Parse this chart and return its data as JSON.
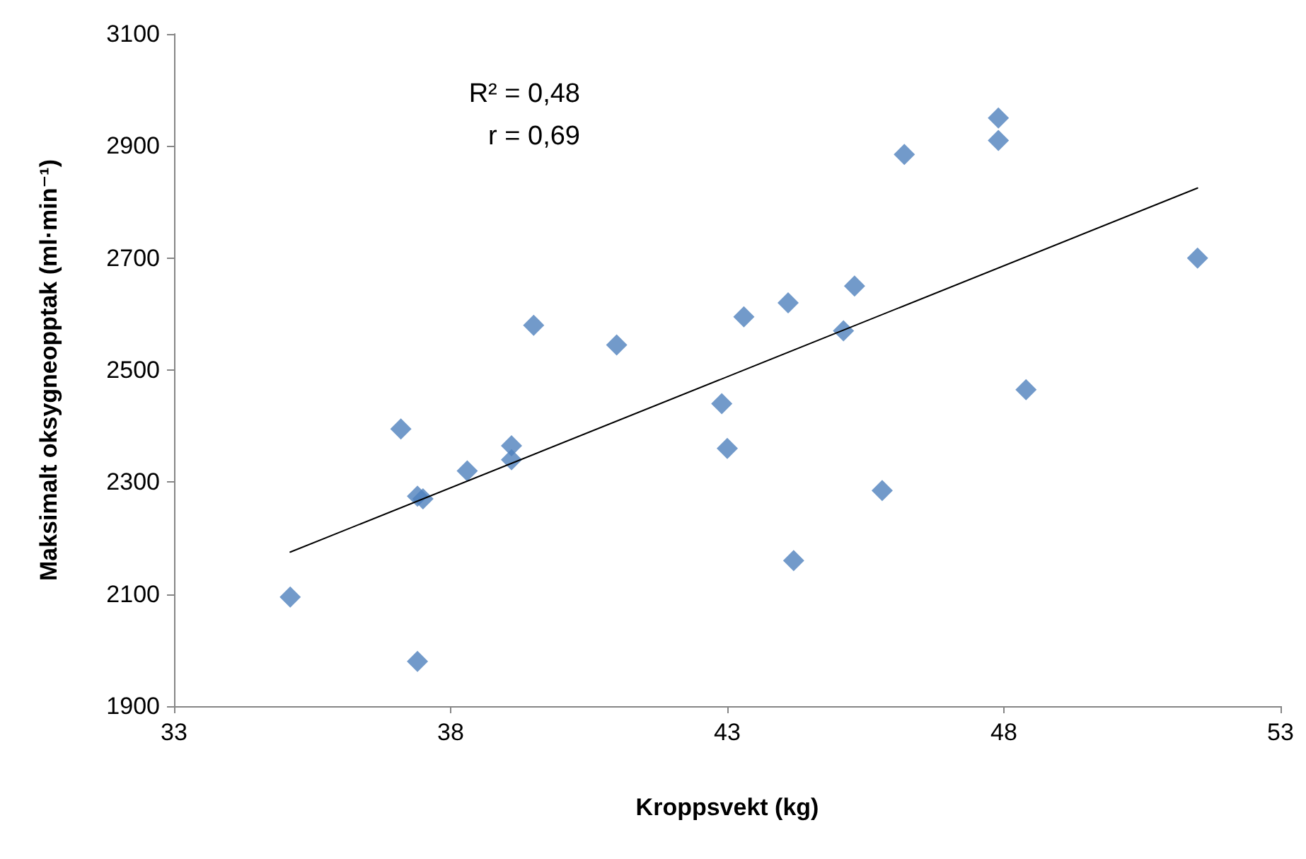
{
  "chart_data": {
    "type": "scatter",
    "xlabel": "Kroppsvekt (kg)",
    "ylabel": "Maksimalt oksygneopptak (ml·min⁻¹)",
    "annotations": [
      "R² = 0,48",
      "r = 0,69"
    ],
    "xlim": [
      33,
      53
    ],
    "xticks": [
      33,
      38,
      43,
      48,
      53
    ],
    "ylim": [
      1900,
      3100
    ],
    "yticks": [
      1900,
      2100,
      2300,
      2500,
      2700,
      2900,
      3100
    ],
    "grid": false,
    "marker": "diamond",
    "series": [
      {
        "color": "#4f81bd",
        "x": [
          35.1,
          37.1,
          37.4,
          37.5,
          37.4,
          38.3,
          39.1,
          39.1,
          39.5,
          41.0,
          42.9,
          43.0,
          43.3,
          44.1,
          44.2,
          45.1,
          45.3,
          45.8,
          46.2,
          47.9,
          47.9,
          48.4,
          51.5
        ],
        "values": [
          2095,
          2395,
          2275,
          2270,
          1980,
          2320,
          2365,
          2340,
          2580,
          2545,
          2440,
          2360,
          2595,
          2620,
          2160,
          2570,
          2650,
          2285,
          2885,
          2950,
          2910,
          2465,
          2700
        ]
      },
      {
        "type": "line",
        "color": "#000000",
        "marker": "none",
        "x": [
          35.1,
          51.5
        ],
        "values": [
          2175,
          2825
        ]
      }
    ]
  }
}
